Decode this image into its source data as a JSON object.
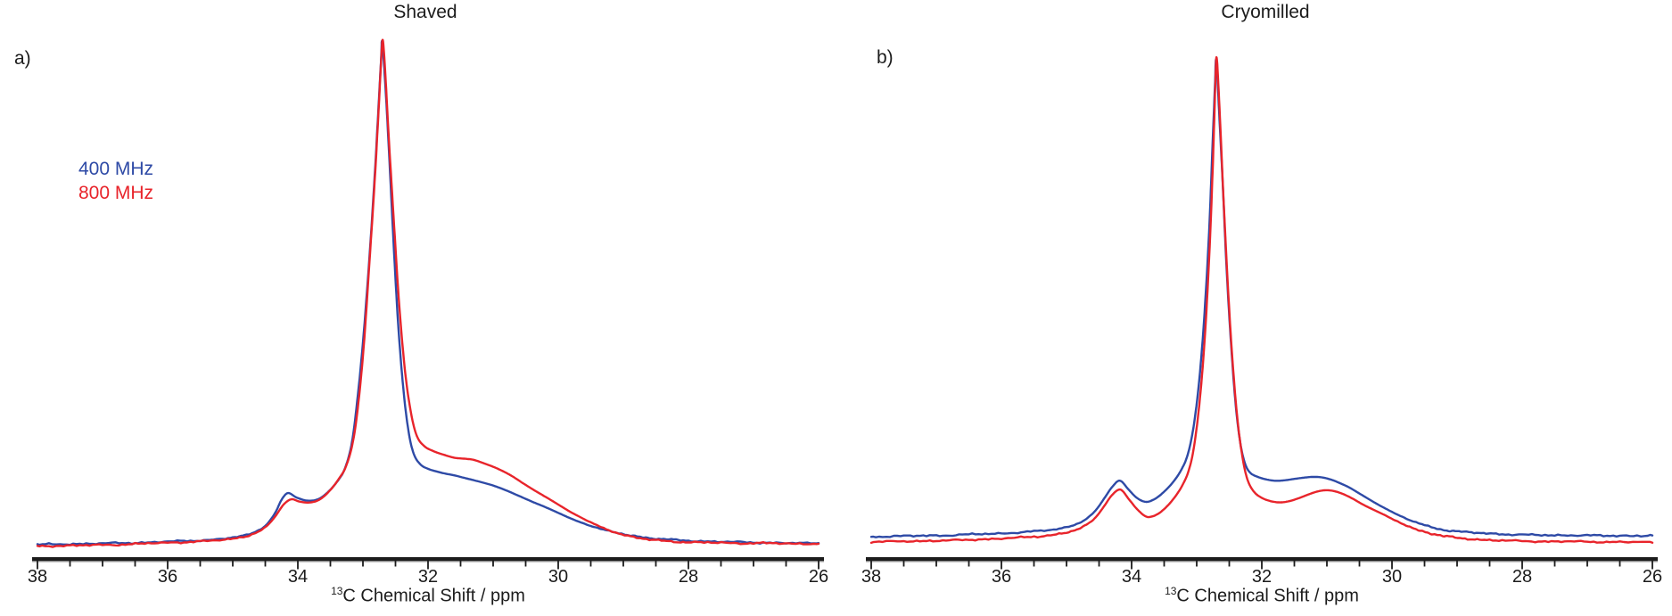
{
  "figure": {
    "panels": [
      {
        "letter": "a)",
        "title": "Shaved"
      },
      {
        "letter": "b)",
        "title": "Cryomilled"
      }
    ]
  },
  "legend": {
    "items": [
      {
        "label": "400 MHz",
        "color": "#2e4aa6"
      },
      {
        "label": "800 MHz",
        "color": "#e8242b"
      }
    ]
  },
  "axis": {
    "label_sup": "13",
    "label_rest": "C Chemical Shift / ppm"
  },
  "colors": {
    "blue": "#2e4aa6",
    "red": "#e8242b",
    "axis": "#1c1c1c"
  },
  "chart_data": [
    {
      "type": "line",
      "title": "Shaved",
      "xlabel": "13C Chemical Shift / ppm",
      "ylabel": "",
      "x_axis": {
        "range": [
          38,
          26
        ],
        "reversed": true,
        "ticks": [
          38,
          36,
          34,
          32,
          30,
          28,
          26
        ],
        "minor_tick_step": 0.5
      },
      "y_axis": {
        "visible": false,
        "note": "intensity normalized to main peak = 1"
      },
      "main_peak_ppm": 32.7,
      "minor_peak_ppm": 34.2,
      "series": [
        {
          "name": "400 MHz",
          "color": "#2e4aa6",
          "points": [
            [
              38.0,
              0.0
            ],
            [
              37.6,
              0.001
            ],
            [
              37.2,
              0.002
            ],
            [
              36.8,
              0.003
            ],
            [
              36.4,
              0.004
            ],
            [
              36.0,
              0.006
            ],
            [
              35.6,
              0.008
            ],
            [
              35.2,
              0.011
            ],
            [
              34.9,
              0.016
            ],
            [
              34.7,
              0.023
            ],
            [
              34.5,
              0.038
            ],
            [
              34.35,
              0.063
            ],
            [
              34.25,
              0.089
            ],
            [
              34.15,
              0.102
            ],
            [
              34.02,
              0.093
            ],
            [
              33.85,
              0.087
            ],
            [
              33.68,
              0.091
            ],
            [
              33.52,
              0.107
            ],
            [
              33.38,
              0.128
            ],
            [
              33.28,
              0.15
            ],
            [
              33.18,
              0.195
            ],
            [
              33.1,
              0.27
            ],
            [
              33.0,
              0.4
            ],
            [
              32.9,
              0.57
            ],
            [
              32.82,
              0.73
            ],
            [
              32.76,
              0.87
            ],
            [
              32.72,
              0.965
            ],
            [
              32.705,
              0.997
            ],
            [
              32.66,
              0.92
            ],
            [
              32.6,
              0.78
            ],
            [
              32.53,
              0.6
            ],
            [
              32.46,
              0.44
            ],
            [
              32.38,
              0.31
            ],
            [
              32.3,
              0.225
            ],
            [
              32.22,
              0.18
            ],
            [
              32.12,
              0.159
            ],
            [
              32.0,
              0.15
            ],
            [
              31.8,
              0.143
            ],
            [
              31.6,
              0.138
            ],
            [
              31.4,
              0.131
            ],
            [
              31.2,
              0.124
            ],
            [
              31.0,
              0.117
            ],
            [
              30.8,
              0.108
            ],
            [
              30.6,
              0.097
            ],
            [
              30.4,
              0.085
            ],
            [
              30.2,
              0.074
            ],
            [
              30.0,
              0.063
            ],
            [
              29.8,
              0.052
            ],
            [
              29.6,
              0.042
            ],
            [
              29.4,
              0.033
            ],
            [
              29.2,
              0.026
            ],
            [
              29.0,
              0.021
            ],
            [
              28.8,
              0.017
            ],
            [
              28.6,
              0.013
            ],
            [
              28.3,
              0.01
            ],
            [
              28.0,
              0.008
            ],
            [
              27.6,
              0.006
            ],
            [
              27.2,
              0.005
            ],
            [
              26.8,
              0.004
            ],
            [
              26.4,
              0.003
            ],
            [
              26.0,
              0.003
            ]
          ]
        },
        {
          "name": "800 MHz",
          "color": "#e8242b",
          "points": [
            [
              38.0,
              -0.003
            ],
            [
              37.6,
              -0.002
            ],
            [
              37.2,
              -0.001
            ],
            [
              36.8,
              0.0
            ],
            [
              36.4,
              0.002
            ],
            [
              36.0,
              0.004
            ],
            [
              35.6,
              0.006
            ],
            [
              35.2,
              0.009
            ],
            [
              34.9,
              0.014
            ],
            [
              34.7,
              0.021
            ],
            [
              34.5,
              0.034
            ],
            [
              34.35,
              0.055
            ],
            [
              34.22,
              0.079
            ],
            [
              34.1,
              0.09
            ],
            [
              33.98,
              0.086
            ],
            [
              33.82,
              0.084
            ],
            [
              33.66,
              0.09
            ],
            [
              33.5,
              0.108
            ],
            [
              33.36,
              0.132
            ],
            [
              33.26,
              0.155
            ],
            [
              33.16,
              0.2
            ],
            [
              33.08,
              0.27
            ],
            [
              32.99,
              0.39
            ],
            [
              32.9,
              0.56
            ],
            [
              32.82,
              0.72
            ],
            [
              32.76,
              0.86
            ],
            [
              32.72,
              0.96
            ],
            [
              32.695,
              1.0
            ],
            [
              32.655,
              0.93
            ],
            [
              32.6,
              0.8
            ],
            [
              32.52,
              0.63
            ],
            [
              32.44,
              0.47
            ],
            [
              32.35,
              0.34
            ],
            [
              32.26,
              0.26
            ],
            [
              32.17,
              0.215
            ],
            [
              32.05,
              0.195
            ],
            [
              31.9,
              0.185
            ],
            [
              31.75,
              0.178
            ],
            [
              31.6,
              0.172
            ],
            [
              31.45,
              0.17
            ],
            [
              31.3,
              0.168
            ],
            [
              31.15,
              0.162
            ],
            [
              31.0,
              0.155
            ],
            [
              30.85,
              0.146
            ],
            [
              30.7,
              0.135
            ],
            [
              30.55,
              0.122
            ],
            [
              30.4,
              0.11
            ],
            [
              30.25,
              0.099
            ],
            [
              30.1,
              0.088
            ],
            [
              29.95,
              0.076
            ],
            [
              29.8,
              0.064
            ],
            [
              29.6,
              0.05
            ],
            [
              29.4,
              0.038
            ],
            [
              29.2,
              0.028
            ],
            [
              29.0,
              0.02
            ],
            [
              28.8,
              0.014
            ],
            [
              28.6,
              0.01
            ],
            [
              28.3,
              0.007
            ],
            [
              28.0,
              0.005
            ],
            [
              27.6,
              0.004
            ],
            [
              27.2,
              0.003
            ],
            [
              26.8,
              0.003
            ],
            [
              26.4,
              0.002
            ],
            [
              26.0,
              0.002
            ]
          ]
        }
      ]
    },
    {
      "type": "line",
      "title": "Cryomilled",
      "xlabel": "13C Chemical Shift / ppm",
      "ylabel": "",
      "x_axis": {
        "range": [
          38,
          26
        ],
        "reversed": true,
        "ticks": [
          38,
          36,
          34,
          32,
          30,
          28,
          26
        ],
        "minor_tick_step": 0.5
      },
      "y_axis": {
        "visible": false,
        "note": "intensity normalized to main peak = 1"
      },
      "main_peak_ppm": 32.7,
      "minor_peak_ppm": 34.2,
      "series": [
        {
          "name": "400 MHz",
          "color": "#2e4aa6",
          "points": [
            [
              38.0,
              0.0
            ],
            [
              37.6,
              0.001
            ],
            [
              37.2,
              0.002
            ],
            [
              36.8,
              0.003
            ],
            [
              36.4,
              0.005
            ],
            [
              36.0,
              0.007
            ],
            [
              35.6,
              0.01
            ],
            [
              35.2,
              0.015
            ],
            [
              34.9,
              0.024
            ],
            [
              34.7,
              0.037
            ],
            [
              34.55,
              0.055
            ],
            [
              34.42,
              0.08
            ],
            [
              34.3,
              0.104
            ],
            [
              34.18,
              0.118
            ],
            [
              34.05,
              0.1
            ],
            [
              33.92,
              0.082
            ],
            [
              33.78,
              0.073
            ],
            [
              33.64,
              0.079
            ],
            [
              33.5,
              0.094
            ],
            [
              33.36,
              0.115
            ],
            [
              33.24,
              0.14
            ],
            [
              33.14,
              0.172
            ],
            [
              33.05,
              0.23
            ],
            [
              32.96,
              0.33
            ],
            [
              32.88,
              0.47
            ],
            [
              32.81,
              0.64
            ],
            [
              32.76,
              0.81
            ],
            [
              32.72,
              0.945
            ],
            [
              32.7,
              1.0
            ],
            [
              32.655,
              0.89
            ],
            [
              32.6,
              0.74
            ],
            [
              32.54,
              0.56
            ],
            [
              32.47,
              0.4
            ],
            [
              32.4,
              0.275
            ],
            [
              32.33,
              0.197
            ],
            [
              32.26,
              0.155
            ],
            [
              32.18,
              0.135
            ],
            [
              32.06,
              0.126
            ],
            [
              31.92,
              0.12
            ],
            [
              31.78,
              0.117
            ],
            [
              31.64,
              0.118
            ],
            [
              31.5,
              0.121
            ],
            [
              31.36,
              0.124
            ],
            [
              31.22,
              0.126
            ],
            [
              31.08,
              0.125
            ],
            [
              30.94,
              0.12
            ],
            [
              30.8,
              0.112
            ],
            [
              30.66,
              0.103
            ],
            [
              30.52,
              0.092
            ],
            [
              30.38,
              0.081
            ],
            [
              30.24,
              0.07
            ],
            [
              30.08,
              0.058
            ],
            [
              29.9,
              0.045
            ],
            [
              29.72,
              0.034
            ],
            [
              29.54,
              0.026
            ],
            [
              29.36,
              0.019
            ],
            [
              29.18,
              0.014
            ],
            [
              29.0,
              0.011
            ],
            [
              28.7,
              0.008
            ],
            [
              28.4,
              0.006
            ],
            [
              28.0,
              0.004
            ],
            [
              27.6,
              0.003
            ],
            [
              27.2,
              0.003
            ],
            [
              26.8,
              0.002
            ],
            [
              26.4,
              0.002
            ],
            [
              26.0,
              0.002
            ]
          ]
        },
        {
          "name": "800 MHz",
          "color": "#e8242b",
          "points": [
            [
              38.0,
              -0.011
            ],
            [
              37.6,
              -0.01
            ],
            [
              37.2,
              -0.009
            ],
            [
              36.8,
              -0.008
            ],
            [
              36.4,
              -0.006
            ],
            [
              36.0,
              -0.004
            ],
            [
              35.6,
              -0.001
            ],
            [
              35.2,
              0.004
            ],
            [
              34.9,
              0.012
            ],
            [
              34.7,
              0.024
            ],
            [
              34.55,
              0.041
            ],
            [
              34.42,
              0.065
            ],
            [
              34.3,
              0.088
            ],
            [
              34.17,
              0.099
            ],
            [
              34.04,
              0.078
            ],
            [
              33.9,
              0.055
            ],
            [
              33.76,
              0.041
            ],
            [
              33.62,
              0.046
            ],
            [
              33.48,
              0.061
            ],
            [
              33.34,
              0.083
            ],
            [
              33.22,
              0.108
            ],
            [
              33.12,
              0.14
            ],
            [
              33.04,
              0.19
            ],
            [
              32.95,
              0.29
            ],
            [
              32.87,
              0.43
            ],
            [
              32.8,
              0.61
            ],
            [
              32.75,
              0.79
            ],
            [
              32.715,
              0.945
            ],
            [
              32.693,
              1.006
            ],
            [
              32.65,
              0.9
            ],
            [
              32.595,
              0.73
            ],
            [
              32.53,
              0.55
            ],
            [
              32.46,
              0.39
            ],
            [
              32.38,
              0.255
            ],
            [
              32.3,
              0.17
            ],
            [
              32.22,
              0.12
            ],
            [
              32.12,
              0.094
            ],
            [
              32.0,
              0.081
            ],
            [
              31.86,
              0.074
            ],
            [
              31.72,
              0.072
            ],
            [
              31.58,
              0.075
            ],
            [
              31.44,
              0.081
            ],
            [
              31.3,
              0.088
            ],
            [
              31.16,
              0.094
            ],
            [
              31.02,
              0.097
            ],
            [
              30.88,
              0.095
            ],
            [
              30.74,
              0.089
            ],
            [
              30.6,
              0.08
            ],
            [
              30.46,
              0.069
            ],
            [
              30.32,
              0.059
            ],
            [
              30.16,
              0.048
            ],
            [
              30.0,
              0.037
            ],
            [
              29.82,
              0.026
            ],
            [
              29.64,
              0.016
            ],
            [
              29.46,
              0.009
            ],
            [
              29.28,
              0.003
            ],
            [
              29.1,
              -0.001
            ],
            [
              28.8,
              -0.005
            ],
            [
              28.5,
              -0.007
            ],
            [
              28.1,
              -0.009
            ],
            [
              27.7,
              -0.01
            ],
            [
              27.3,
              -0.01
            ],
            [
              26.9,
              -0.011
            ],
            [
              26.5,
              -0.011
            ],
            [
              26.0,
              -0.012
            ]
          ]
        }
      ]
    }
  ]
}
